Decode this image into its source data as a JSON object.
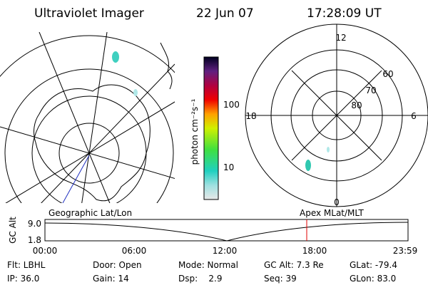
{
  "header": {
    "title": "Ultraviolet Imager",
    "date": "22 Jun 07",
    "time": "17:28:09 UT"
  },
  "colorbar": {
    "label": "photon cm⁻²s⁻¹",
    "ticks": [
      "100",
      "10"
    ]
  },
  "polar": {
    "labels": [
      "12",
      "60",
      "70",
      "80",
      "18",
      "6",
      "0"
    ]
  },
  "timeline": {
    "left_title": "Geographic Lat/Lon",
    "right_title": "Apex MLat/MLT",
    "y_label": "GC Alt",
    "y_ticks": [
      "9.0",
      "1.8"
    ],
    "x_ticks": [
      "00:00",
      "06:00",
      "12:00",
      "18:00",
      "23:59"
    ]
  },
  "status": {
    "rows": [
      [
        "Flt: LBHL",
        "Door: Open",
        "Mode: Normal",
        "GC Alt: 7.3 Re",
        "GLat: -79.4"
      ],
      [
        "IP: 36.0",
        "Gain: 14",
        "Dsp:    2.9",
        "Seq: 39",
        "GLon: 83.0"
      ]
    ]
  }
}
